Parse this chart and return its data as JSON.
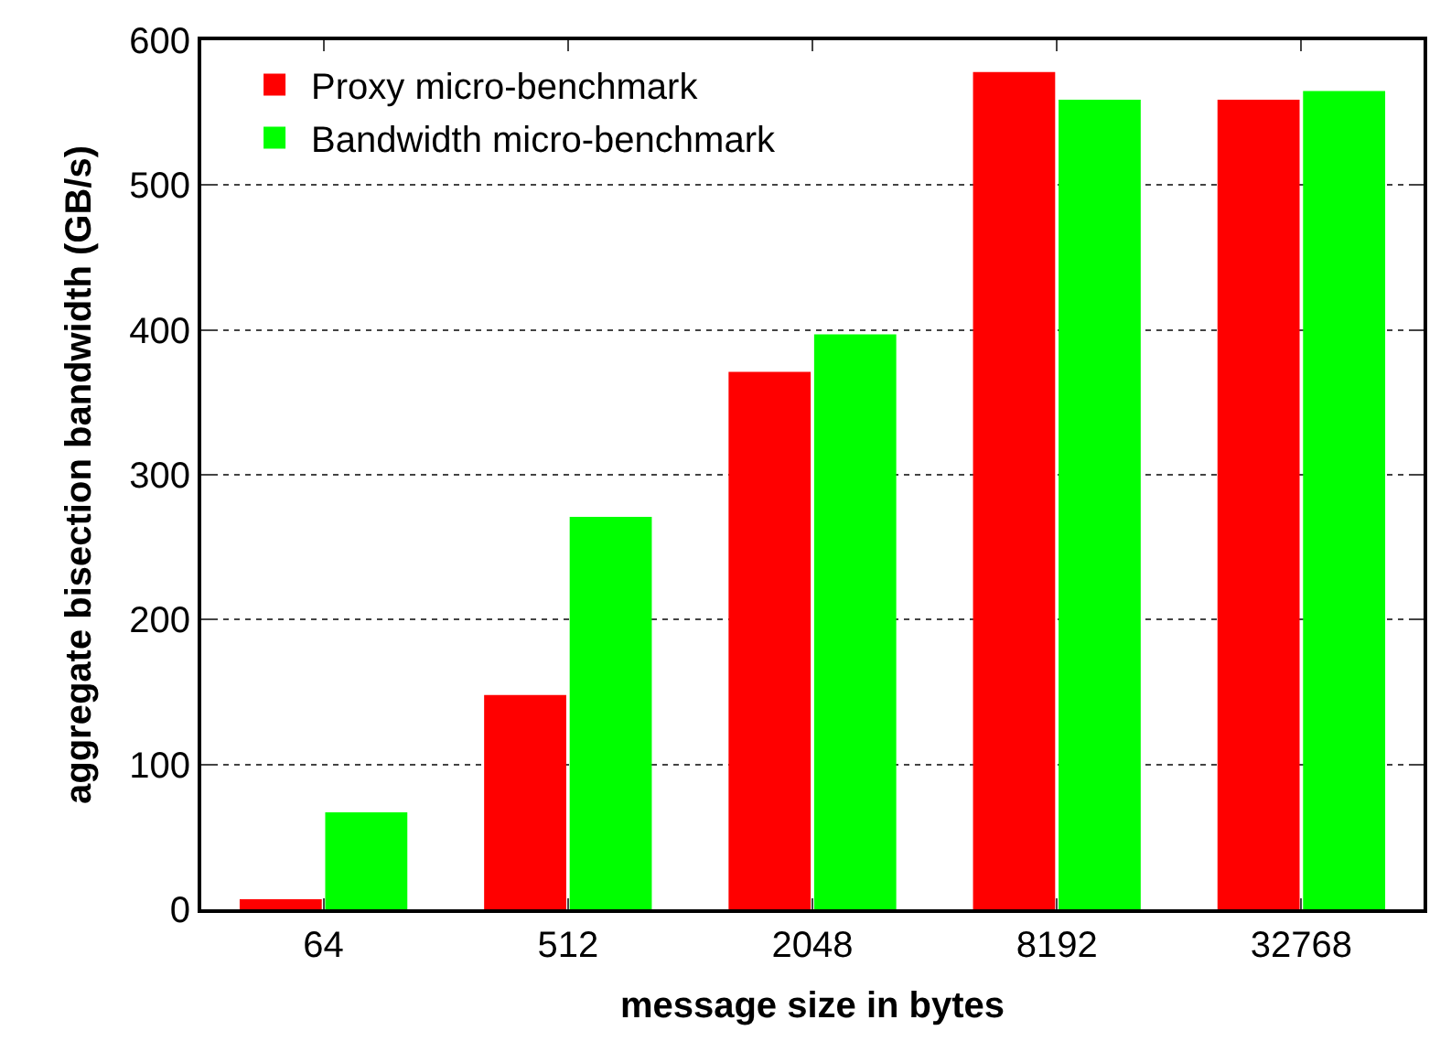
{
  "chart_data": {
    "type": "bar",
    "xlabel": "message size in bytes",
    "ylabel": "aggregate bisection bandwidth (GB/s)",
    "categories": [
      "64",
      "512",
      "2048",
      "8192",
      "32768"
    ],
    "series": [
      {
        "name": "Proxy micro-benchmark",
        "color": "#ff0000",
        "values": [
          7,
          148,
          371,
          578,
          559
        ]
      },
      {
        "name": "Bandwidth micro-benchmark",
        "color": "#00ff00",
        "values": [
          67,
          271,
          397,
          559,
          565
        ]
      }
    ],
    "ylim": [
      0,
      600
    ],
    "yticks": [
      0,
      100,
      200,
      300,
      400,
      500,
      600
    ],
    "grid": "y",
    "legend": "top left"
  }
}
